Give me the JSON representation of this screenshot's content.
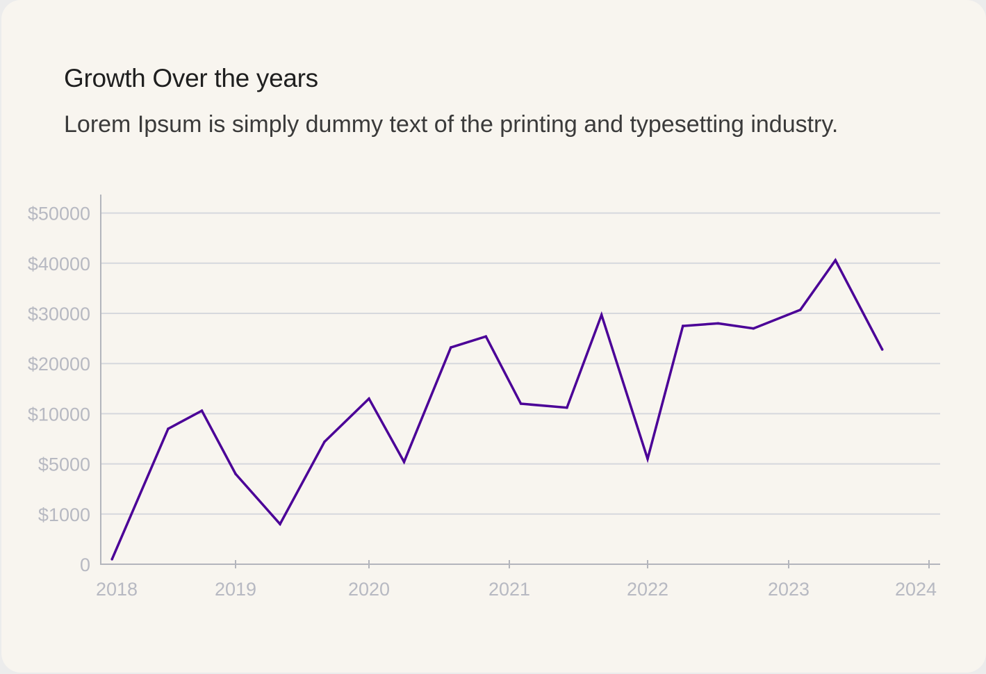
{
  "chart_data": {
    "type": "line",
    "title": "Growth Over the years",
    "subtitle": "Lorem Ipsum is simply dummy text of the printing and typesetting industry.",
    "xlabel": "",
    "ylabel": "",
    "x_ticks": [
      "2018",
      "2019",
      "2020",
      "2021",
      "2022",
      "2023",
      "2024"
    ],
    "y_ticks": [
      "0",
      "$1000",
      "$5000",
      "$10000",
      "$20000",
      "$30000",
      "$40000",
      "$50000"
    ],
    "y_tick_values": [
      0,
      1000,
      5000,
      10000,
      20000,
      30000,
      40000,
      50000
    ],
    "grid": true,
    "line_color": "#4b0097",
    "series": [
      {
        "name": "",
        "x": [
          "2018-02",
          "2018-07",
          "2018-10",
          "2019-01",
          "2019-05",
          "2019-09",
          "2020-01",
          "2020-04",
          "2020-08",
          "2020-11",
          "2021-02",
          "2021-06",
          "2021-09",
          "2022-01",
          "2022-04",
          "2022-07",
          "2022-10",
          "2023-02",
          "2023-05",
          "2023-09"
        ],
        "values": [
          100,
          8500,
          10600,
          4200,
          800,
          7200,
          13000,
          5200,
          23200,
          25400,
          12000,
          11200,
          29700,
          5500,
          27500,
          28000,
          27000,
          30700,
          40600,
          22800
        ]
      }
    ]
  }
}
